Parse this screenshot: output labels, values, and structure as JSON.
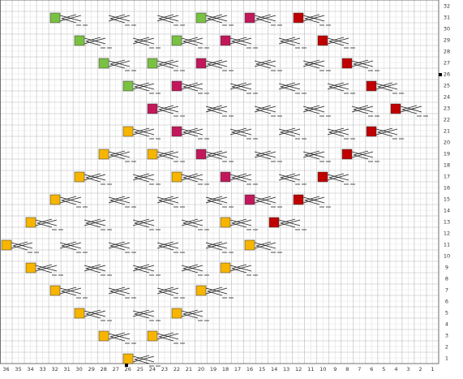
{
  "chart_data": {
    "type": "knitting-chart",
    "x_tick_labels": [
      "36",
      "35",
      "34",
      "33",
      "32",
      "31",
      "30",
      "29",
      "28",
      "27",
      "26",
      "25",
      "24",
      "23",
      "22",
      "21",
      "20",
      "19",
      "18",
      "17",
      "16",
      "15",
      "14",
      "13",
      "12",
      "11",
      "10",
      "9",
      "8",
      "7",
      "6",
      "5",
      "4",
      "3",
      "2",
      "1"
    ],
    "y_tick_labels": [
      "1",
      "2",
      "3",
      "4",
      "5",
      "6",
      "7",
      "8",
      "9",
      "10",
      "11",
      "12",
      "13",
      "14",
      "15",
      "16",
      "17",
      "18",
      "19",
      "20",
      "21",
      "22",
      "23",
      "24",
      "25",
      "26",
      "27",
      "28",
      "29",
      "30",
      "31",
      "32"
    ],
    "grid": true,
    "colors": {
      "green": "#7ac143",
      "yellow": "#f7b500",
      "magenta": "#c2185b",
      "red": "#c00000",
      "grid_minor": "#e2e2e2",
      "grid_major": "#b8b8b8",
      "symbol": "#222222"
    },
    "legend": "none"
  }
}
